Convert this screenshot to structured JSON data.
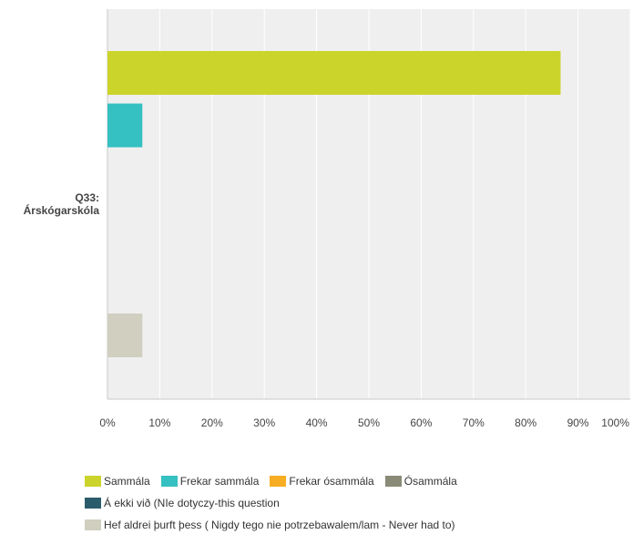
{
  "chart_data": {
    "type": "bar",
    "orientation": "horizontal",
    "categories": [
      "Q33: Árskógarskóla"
    ],
    "category_label_lines": [
      "Q33:",
      "Árskógarskóla"
    ],
    "series": [
      {
        "name": "Sammála",
        "color": "#cbd42a",
        "values": [
          86.67
        ]
      },
      {
        "name": "Frekar sammála",
        "color": "#35c0c1",
        "values": [
          6.67
        ]
      },
      {
        "name": "Frekar ósammála",
        "color": "#f6ad22",
        "values": [
          0
        ]
      },
      {
        "name": "Ósammála",
        "color": "#8a8b77",
        "values": [
          0
        ]
      },
      {
        "name": "Á ekki við (NIe dotyczy-this question",
        "color": "#2b5c6b",
        "values": [
          0
        ]
      },
      {
        "name": "Hef aldrei þurft þess ( Nigdy tego nie potrzebawalem/lam - Never had to)",
        "color": "#d0cfc0",
        "values": [
          6.67
        ]
      }
    ],
    "xlim": [
      0,
      100
    ],
    "ticks": [
      "0%",
      "10%",
      "20%",
      "30%",
      "40%",
      "50%",
      "60%",
      "70%",
      "80%",
      "90%",
      "100%"
    ],
    "grid": true,
    "legend_position": "bottom"
  }
}
